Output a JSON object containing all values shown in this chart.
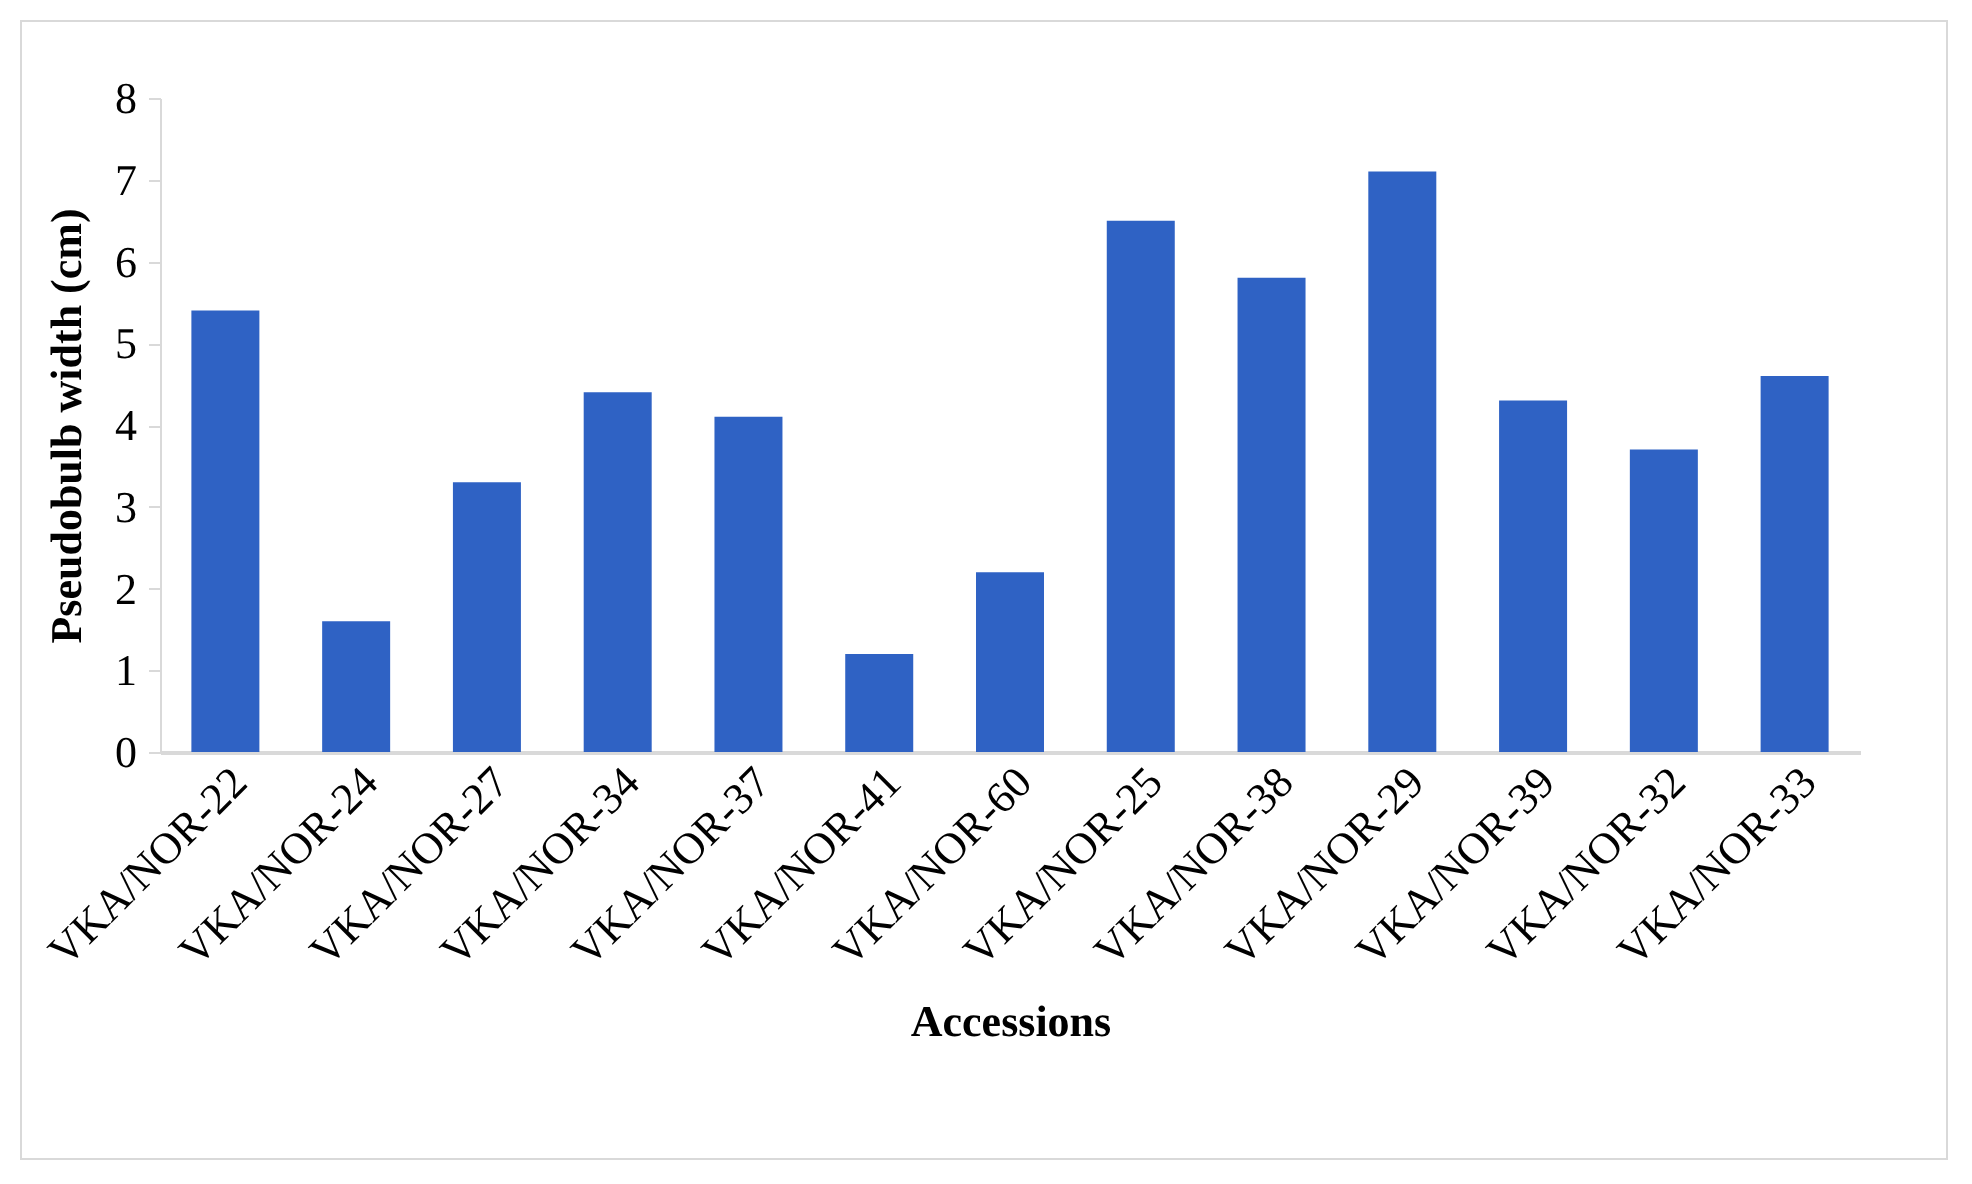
{
  "chart_data": {
    "type": "bar",
    "xlabel": "Accessions",
    "ylabel": "Pseudobulb width (cm)",
    "categories": [
      "VKA/NOR-22",
      "VKA/NOR-24",
      "VKA/NOR-27",
      "VKA/NOR-34",
      "VKA/NOR-37",
      "VKA/NOR-41",
      "VKA/NOR-60",
      "VKA/NOR-25",
      "VKA/NOR-38",
      "VKA/NOR-29",
      "VKA/NOR-39",
      "VKA/NOR-32",
      "VKA/NOR-33"
    ],
    "values": [
      5.4,
      1.6,
      3.3,
      4.4,
      4.1,
      1.2,
      2.2,
      6.5,
      5.8,
      7.1,
      4.3,
      3.7,
      4.6
    ],
    "color": "#2f62c4",
    "ylim": [
      0,
      8
    ],
    "yticks": [
      0,
      1,
      2,
      3,
      4,
      5,
      6,
      7,
      8
    ],
    "grid": false
  }
}
